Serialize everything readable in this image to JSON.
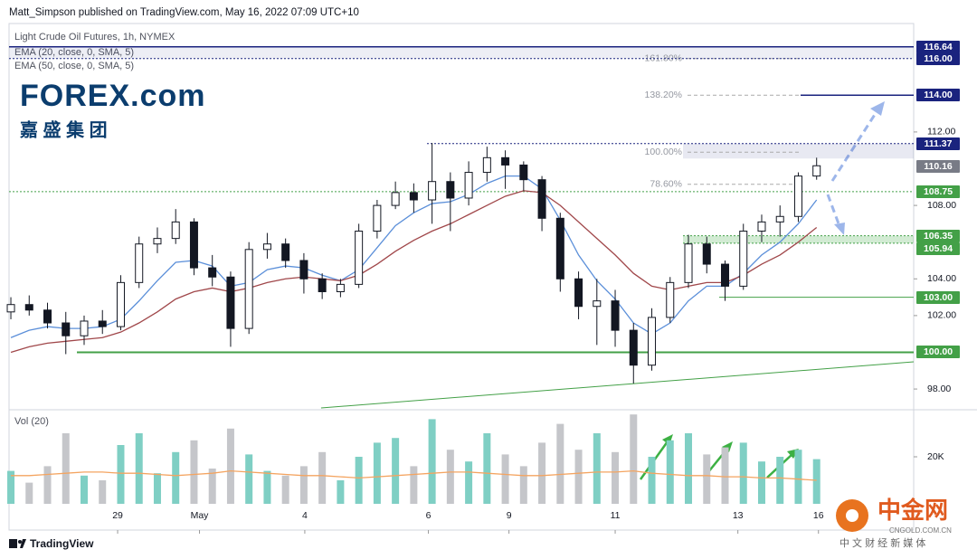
{
  "header": {
    "publisher": "Matt_Simpson published on TradingView.com, May 16, 2022 07:09 UTC+10",
    "symbol": "Light Crude Oil Futures, 1h, NYMEX",
    "ema20": "EMA (20, close, 0, SMA, 5)",
    "ema50": "EMA (50, close, 0, SMA, 5)"
  },
  "logo": {
    "brand": "FOREX.com",
    "chinese": "嘉 盛 集 团"
  },
  "footer": {
    "brand": "TradingView"
  },
  "watermark": {
    "name": "中金网",
    "url": "CNGOLD.COM.CN",
    "tagline": "中 文 财 经 新 媒 体"
  },
  "chart_data": [
    {
      "type": "candlestick",
      "open": [
        102.2,
        102.6,
        102.3,
        101.6,
        100.9,
        101.7,
        101.4,
        103.8,
        105.9,
        106.2,
        107.1,
        104.6,
        104.1,
        101.3,
        105.6,
        105.9,
        105.0,
        104.0,
        103.3,
        103.7,
        106.6,
        108.0,
        108.7,
        108.3,
        109.3,
        108.4,
        109.8,
        110.6,
        110.2,
        109.4,
        107.3,
        104.0,
        102.5,
        102.8,
        101.2,
        99.3,
        101.9,
        103.8,
        105.9,
        104.8,
        103.6,
        106.6,
        107.1,
        107.4,
        109.6
      ],
      "high": [
        103.0,
        103.1,
        102.7,
        102.2,
        102.0,
        102.3,
        104.2,
        106.3,
        106.8,
        107.8,
        107.3,
        105.3,
        104.4,
        106.0,
        106.5,
        106.2,
        105.4,
        104.3,
        104.0,
        107.0,
        108.3,
        109.3,
        109.2,
        111.4,
        109.8,
        110.4,
        111.2,
        111.0,
        110.4,
        109.6,
        107.6,
        104.4,
        104.0,
        103.4,
        101.6,
        102.4,
        104.1,
        106.4,
        106.3,
        105.0,
        107.0,
        107.5,
        108.0,
        109.8,
        110.6
      ],
      "low": [
        101.8,
        102.0,
        101.3,
        99.9,
        100.4,
        101.0,
        101.2,
        103.5,
        105.4,
        105.9,
        104.2,
        103.6,
        100.3,
        101.0,
        105.1,
        104.6,
        103.2,
        102.9,
        103.0,
        103.5,
        106.2,
        107.8,
        107.6,
        107.0,
        106.6,
        108.0,
        109.3,
        108.9,
        108.8,
        106.6,
        103.3,
        101.8,
        100.4,
        100.3,
        98.3,
        99.0,
        101.6,
        103.5,
        104.3,
        102.8,
        103.4,
        106.0,
        106.3,
        107.1,
        109.4
      ],
      "close": [
        102.6,
        102.3,
        101.6,
        100.9,
        101.7,
        101.4,
        103.8,
        105.9,
        106.2,
        107.1,
        104.6,
        104.1,
        101.3,
        105.6,
        105.9,
        105.0,
        104.0,
        103.3,
        103.7,
        106.6,
        108.0,
        108.7,
        108.3,
        109.3,
        108.4,
        109.8,
        110.6,
        110.2,
        109.4,
        107.3,
        104.0,
        102.5,
        102.8,
        101.2,
        99.3,
        101.9,
        103.8,
        105.9,
        104.8,
        103.6,
        106.6,
        107.1,
        107.4,
        109.6,
        110.16
      ],
      "up_color": "#ffffff",
      "down_color": "#131722",
      "series": [
        {
          "name": "EMA (20, close, 0, SMA, 5)",
          "color": "#5b8fd9",
          "values": [
            100.8,
            101.2,
            101.4,
            101.3,
            101.3,
            101.4,
            101.8,
            102.8,
            103.9,
            104.9,
            105.0,
            104.7,
            103.6,
            103.8,
            104.5,
            104.7,
            104.6,
            104.2,
            103.9,
            104.5,
            105.7,
            106.9,
            107.6,
            108.1,
            108.2,
            108.6,
            109.2,
            109.6,
            109.6,
            108.9,
            107.2,
            105.3,
            103.9,
            102.9,
            101.6,
            101.0,
            101.6,
            102.8,
            103.6,
            103.6,
            104.3,
            105.3,
            106.0,
            107.0,
            108.3
          ]
        },
        {
          "name": "EMA (50, close, 0, SMA, 5)",
          "color": "#a0474a",
          "values": [
            100.0,
            100.3,
            100.5,
            100.6,
            100.7,
            100.8,
            101.1,
            101.6,
            102.2,
            102.9,
            103.3,
            103.5,
            103.3,
            103.5,
            103.8,
            104.0,
            104.1,
            104.0,
            103.9,
            104.2,
            104.8,
            105.5,
            106.1,
            106.6,
            107.0,
            107.5,
            108.0,
            108.5,
            108.8,
            108.7,
            108.0,
            107.1,
            106.2,
            105.3,
            104.3,
            103.6,
            103.4,
            103.6,
            103.8,
            103.8,
            104.2,
            104.8,
            105.3,
            106.0,
            106.8
          ]
        }
      ],
      "ylim": [
        96.92,
        117.71
      ],
      "yticks": [
        {
          "value": 98,
          "label": "98.00"
        },
        {
          "value": 102,
          "label": "102.00"
        },
        {
          "value": 104,
          "label": "104.00"
        },
        {
          "value": 108,
          "label": "108.00"
        },
        {
          "value": 112,
          "label": "112.00"
        }
      ],
      "xlim": [
        -0.1,
        49.3
      ],
      "xticks": [
        {
          "value": 5.83,
          "label": "29"
        },
        {
          "value": 10.3,
          "label": "May"
        },
        {
          "value": 16.05,
          "label": "4"
        },
        {
          "value": 22.8,
          "label": "6"
        },
        {
          "value": 27.2,
          "label": "9"
        },
        {
          "value": 33.0,
          "label": "11"
        },
        {
          "value": 39.7,
          "label": "13"
        },
        {
          "value": 44.1,
          "label": "16"
        }
      ],
      "levels": [
        {
          "value": 116.64,
          "label": "116.64",
          "color": "#1a237e"
        },
        {
          "value": 116.0,
          "label": "116.00",
          "color": "#1a237e"
        },
        {
          "value": 114.0,
          "label": "114.00",
          "color": "#1a237e"
        },
        {
          "value": 111.37,
          "label": "111.37",
          "color": "#1a237e"
        },
        {
          "value": 110.16,
          "label": "110.16",
          "color": "#787b86"
        },
        {
          "value": 108.75,
          "label": "108.75",
          "color": "#43a047"
        },
        {
          "value": 106.35,
          "label": "106.35",
          "color": "#43a047"
        },
        {
          "value": 105.94,
          "label": "105.94",
          "color": "#43a047"
        },
        {
          "value": 103.0,
          "label": "103.00",
          "color": "#43a047"
        },
        {
          "value": 100.0,
          "label": "100.00",
          "color": "#43a047"
        }
      ],
      "fib": [
        {
          "label": "161.80%",
          "value": 116.0
        },
        {
          "label": "138.20%",
          "value": 114.0
        },
        {
          "label": "100.00%",
          "value": 110.9
        },
        {
          "label": "78.60%",
          "value": 109.15
        }
      ],
      "trendline": {
        "x": [
          16.94,
          49.3
        ],
        "y": [
          96.97,
          99.48
        ],
        "color": "#43a047"
      }
    },
    {
      "type": "bar",
      "title": "Vol (20)",
      "values": [
        14000,
        9000,
        16000,
        30000,
        12000,
        10000,
        25000,
        30000,
        13000,
        22000,
        27000,
        15000,
        32000,
        21000,
        14000,
        12000,
        16000,
        22000,
        10000,
        20000,
        26000,
        28000,
        16000,
        36000,
        23000,
        18000,
        30000,
        21000,
        16000,
        26000,
        34000,
        23000,
        30000,
        22000,
        38000,
        20000,
        27000,
        30000,
        21000,
        24000,
        26000,
        18000,
        20000,
        23000,
        19000
      ],
      "up_color": "#7fcfc4",
      "down_color": "#c5c6ca",
      "ma": {
        "color": "#f4a460",
        "values": [
          12000,
          12000,
          12500,
          13000,
          13500,
          13500,
          13000,
          13000,
          12500,
          12000,
          12500,
          13000,
          14000,
          13500,
          13000,
          12500,
          12000,
          12000,
          11500,
          11000,
          11500,
          12000,
          12500,
          13000,
          13500,
          13500,
          13000,
          12500,
          12000,
          12000,
          12500,
          13000,
          13500,
          13500,
          14000,
          13000,
          12500,
          12000,
          12000,
          11500,
          11500,
          11000,
          11000,
          10500,
          10000
        ]
      },
      "ylim": [
        0,
        39230
      ],
      "yticks": [
        {
          "value": 20000,
          "label": "20K"
        }
      ],
      "xlim": [
        -0.1,
        49.3
      ]
    }
  ]
}
